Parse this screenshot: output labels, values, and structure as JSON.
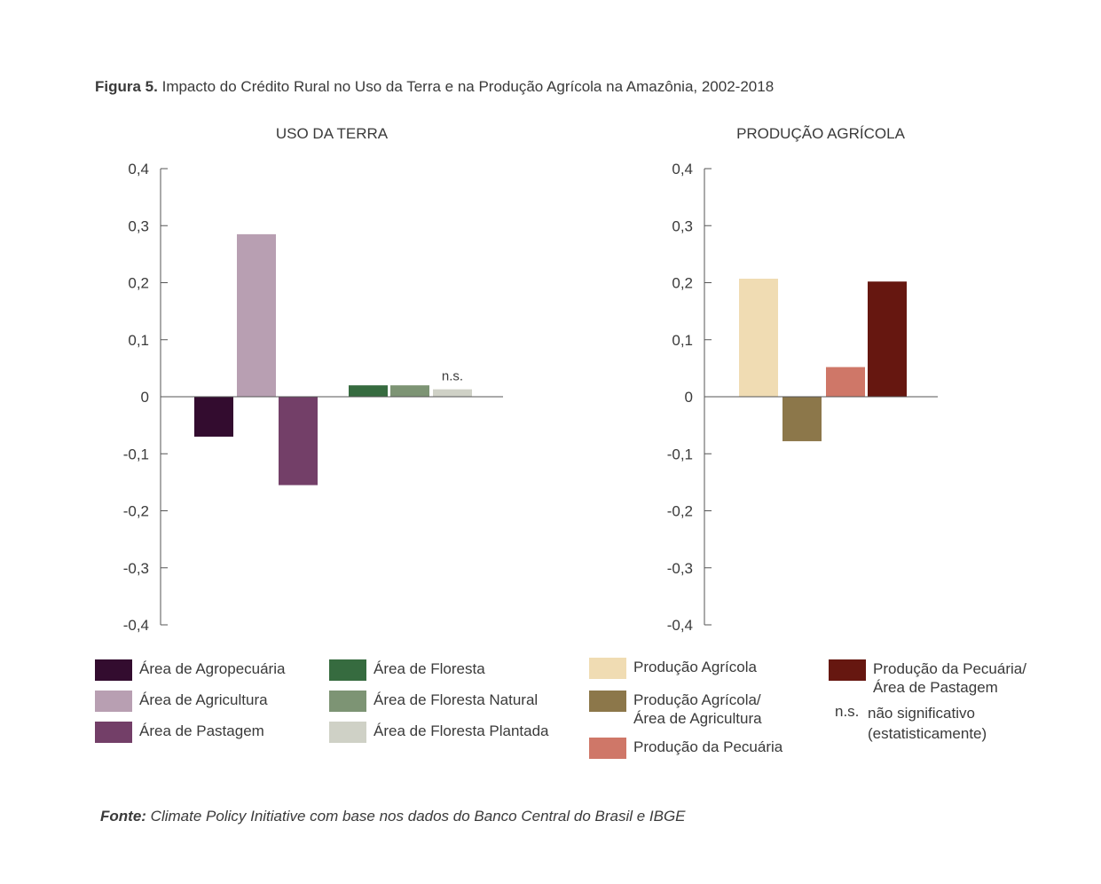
{
  "figure": {
    "label": "Figura 5.",
    "title": "Impacto do Crédito Rural no Uso da Terra e na Produção Agrícola  na Amazônia, 2002-2018"
  },
  "chart_data": [
    {
      "type": "bar",
      "title": "USO DA TERRA",
      "ylim": [
        -0.4,
        0.4
      ],
      "yticks": [
        "-0,4",
        "-0,3",
        "-0,2",
        "-0,1",
        "0",
        "0,1",
        "0,2",
        "0,3",
        "0,4"
      ],
      "ytick_values": [
        -0.4,
        -0.3,
        -0.2,
        -0.1,
        0,
        0.1,
        0.2,
        0.3,
        0.4
      ],
      "grid": false,
      "legend_position": "bottom",
      "series": [
        {
          "name": "Área de Agropecuária",
          "value": -0.07,
          "color": "#330c2f"
        },
        {
          "name": "Área de Agricultura",
          "value": 0.285,
          "color": "#b89fb2"
        },
        {
          "name": "Área de Pastagem",
          "value": -0.155,
          "color": "#733f68"
        },
        {
          "name": "Área de Floresta",
          "value": 0.02,
          "color": "#366b3f"
        },
        {
          "name": "Área de Floresta Natural",
          "value": 0.02,
          "color": "#7d9474"
        },
        {
          "name": "Área de Floresta Plantada",
          "value": 0.013,
          "color": "#cfd1c6",
          "annotation": "n.s."
        }
      ]
    },
    {
      "type": "bar",
      "title": "PRODUÇÃO AGRÍCOLA",
      "ylim": [
        -0.4,
        0.4
      ],
      "yticks": [
        "-0,4",
        "-0,3",
        "-0,2",
        "-0,1",
        "0",
        "0,1",
        "0,2",
        "0,3",
        "0,4"
      ],
      "ytick_values": [
        -0.4,
        -0.3,
        -0.2,
        -0.1,
        0,
        0.1,
        0.2,
        0.3,
        0.4
      ],
      "grid": false,
      "legend_position": "bottom",
      "series": [
        {
          "name": "Produção Agrícola",
          "value": 0.207,
          "color": "#f0dcb3"
        },
        {
          "name": "Produção Agrícola/\nÁrea de Agricultura",
          "value": -0.078,
          "color": "#8c774a"
        },
        {
          "name": "Produção da Pecuária",
          "value": 0.052,
          "color": "#cf7768"
        },
        {
          "name": "Produção da Pecuária/\nÁrea de Pastagem",
          "value": 0.202,
          "color": "#661710"
        }
      ]
    }
  ],
  "notes": {
    "ns_key": "n.s.",
    "ns_text": "não significativo\n(estatisticamente)"
  },
  "source": {
    "label": "Fonte:",
    "text": "Climate Policy Initiative com base nos dados do Banco Central do Brasil e IBGE"
  }
}
